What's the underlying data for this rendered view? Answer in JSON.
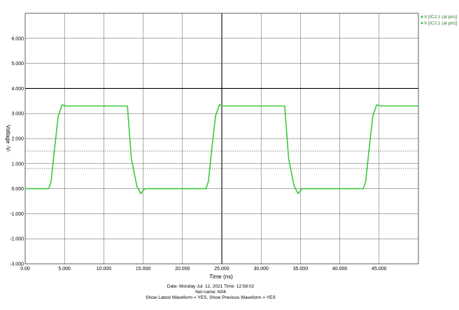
{
  "chart_data": {
    "type": "line",
    "xlabel": "Time  (ns)",
    "ylabel": "Voltage  -V-",
    "xlim": [
      0,
      50000
    ],
    "ylim": [
      -3000,
      7000
    ],
    "x_ticks": [
      0,
      5000,
      10000,
      15000,
      20000,
      25000,
      30000,
      35000,
      40000,
      45000
    ],
    "x_tick_labels": [
      "0.00",
      "5.000",
      "10.000",
      "15.000",
      "20.000",
      "25.000",
      "30.000",
      "35.000",
      "40.000",
      "45.000"
    ],
    "y_ticks": [
      -3000,
      -2000,
      -1000,
      0,
      1000,
      2000,
      3000,
      4000,
      5000,
      6000
    ],
    "y_tick_labels": [
      "-3.000",
      "-2.000",
      "-1.000",
      "0.000",
      "1.000",
      "2.000",
      "3.000",
      "4.000",
      "5.000",
      "6.000"
    ],
    "dashed_levels": [
      1500,
      800
    ],
    "bold_reference": {
      "x": 25000,
      "y": 4000
    },
    "grid": true,
    "legend_position": "top-right",
    "legend": [
      {
        "label": "V [IC2.1 (at pin)]",
        "color": "#3cc83c"
      },
      {
        "label": "V [IC2.1 (at pin)]",
        "color": "#3cc83c"
      }
    ],
    "series": [
      {
        "name": "V [IC2.1 (at pin)]",
        "color": "#3cc83c",
        "x": [
          0,
          3000,
          3300,
          3700,
          4200,
          4700,
          5200,
          12500,
          13000,
          13500,
          14200,
          14700,
          15200,
          16000,
          23000,
          23300,
          23700,
          24200,
          24700,
          25200,
          32500,
          33000,
          33500,
          34200,
          34700,
          35200,
          36000,
          43000,
          43300,
          43700,
          44200,
          44700,
          45200,
          50000
        ],
        "y": [
          0,
          0,
          300,
          1500,
          2900,
          3350,
          3300,
          3300,
          3300,
          1200,
          100,
          -200,
          0,
          0,
          0,
          300,
          1500,
          2900,
          3350,
          3300,
          3300,
          3300,
          1200,
          100,
          -200,
          0,
          0,
          0,
          300,
          1500,
          2900,
          3350,
          3300,
          3300
        ]
      }
    ]
  },
  "footer": {
    "date_line": "Date: Monday Jul. 12, 2021   Time: 12:58:02",
    "net_line": "Net name: N04",
    "show_line": "Show Latest Waveform = YES,  Show Previous Waveform = YES"
  }
}
